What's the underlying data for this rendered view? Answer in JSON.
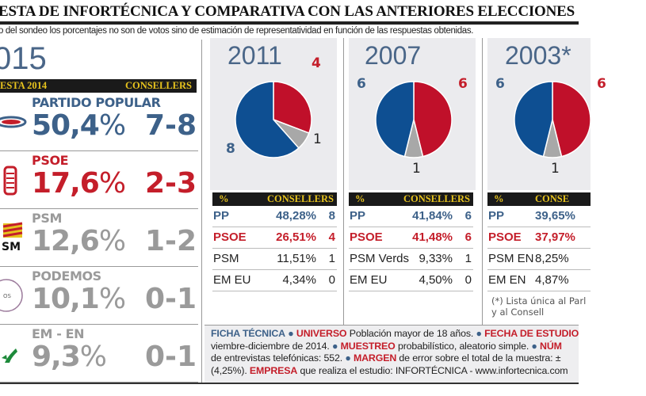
{
  "header": {
    "title": "ESTA DE INFORTÉCNICA Y COMPARATIVA CON LAS ANTERIORES ELECCIONES",
    "subtitle": "o del sondeo los porcentajes no son de votos sino de estimación de representatividad en función de las respuestas obtenidas."
  },
  "survey2015": {
    "year": "015",
    "bar_left": "ESTA 2014",
    "bar_right": "CONSELLERS",
    "parties": [
      {
        "name": "PARTIDO POPULAR",
        "pct": "50,4",
        "seats": "7-8",
        "color": "#3d6189",
        "logo": "pp-logo-icon"
      },
      {
        "name": "PSOE",
        "pct": "17,6",
        "seats": "2-3",
        "color": "#c41e2a",
        "logo": "psoe-logo-icon"
      },
      {
        "name": "PSM",
        "pct": "12,6",
        "seats": "1-2",
        "color": "#9a9a9a",
        "logo": "psm-logo-icon"
      },
      {
        "name": "PODEMOS",
        "pct": "10,1",
        "seats": "0-1",
        "color": "#9a9a9a",
        "logo": "podemos-logo-icon"
      },
      {
        "name": "EM - EN",
        "pct": "9,3",
        "seats": "0-1",
        "color": "#9a9a9a",
        "logo": "em-logo-icon"
      }
    ],
    "pct_sign": "%"
  },
  "chart_data": [
    {
      "type": "pie",
      "title": "2011",
      "labels": [
        "PSOE",
        "PSM",
        "PP"
      ],
      "values": [
        4,
        1,
        8
      ],
      "colors": [
        "#c0102a",
        "#a8a8a8",
        "#0e4f92"
      ]
    },
    {
      "type": "pie",
      "title": "2007",
      "labels": [
        "PSOE",
        "PSM Verds",
        "PP"
      ],
      "values": [
        6,
        1,
        6
      ],
      "colors": [
        "#c0102a",
        "#a8a8a8",
        "#0e4f92"
      ]
    },
    {
      "type": "pie",
      "title": "2003*",
      "labels": [
        "PSOE",
        "PSM EN",
        "PP"
      ],
      "values": [
        6,
        1,
        6
      ],
      "colors": [
        "#c0102a",
        "#a8a8a8",
        "#0e4f92"
      ]
    }
  ],
  "tables": [
    {
      "h_pct": "%",
      "h_seats": "CONSELLERS",
      "rows": [
        {
          "party": "PP",
          "pct": "48,28%",
          "seats": "8",
          "cls": "blue b"
        },
        {
          "party": "PSOE",
          "pct": "26,51%",
          "seats": "4",
          "cls": "red b"
        },
        {
          "party": "PSM",
          "pct": "11,51%",
          "seats": "1",
          "cls": ""
        },
        {
          "party": "EM EU",
          "pct": "4,34%",
          "seats": "0",
          "cls": ""
        }
      ]
    },
    {
      "h_pct": "%",
      "h_seats": "CONSELLERS",
      "rows": [
        {
          "party": "PP",
          "pct": "41,84%",
          "seats": "6",
          "cls": "blue b"
        },
        {
          "party": "PSOE",
          "pct": "41,48%",
          "seats": "6",
          "cls": "red b"
        },
        {
          "party": "PSM Verds",
          "pct": "9,33%",
          "seats": "1",
          "cls": ""
        },
        {
          "party": "EM EU",
          "pct": "4,50%",
          "seats": "0",
          "cls": ""
        }
      ]
    },
    {
      "h_pct": "%",
      "h_seats": "CONSE",
      "rows": [
        {
          "party": "PP",
          "pct": "39,65%",
          "seats": "",
          "cls": "blue b"
        },
        {
          "party": "PSOE",
          "pct": "37,97%",
          "seats": "",
          "cls": "red b"
        },
        {
          "party": "PSM EN",
          "pct": "8,25%",
          "seats": "",
          "cls": ""
        },
        {
          "party": "EM EN",
          "pct": "4,87%",
          "seats": "",
          "cls": ""
        }
      ]
    }
  ],
  "note": {
    "line1": "(*) Lista única al Parl",
    "line2": "y al Consell"
  },
  "ficha": {
    "title": "FICHA TÉCNICA",
    "universo_k": "UNIVERSO",
    "universo": " Población mayor de 18 años. ",
    "fecha_k": "FECHA DE ESTUDIO",
    "line2a": "viembre-diciembre de 2014. ",
    "muestreo_k": "MUESTREO",
    "muestreo": " probabilístico, aleatorio simple. ",
    "num_k": "NÚM",
    "line3a": "de entrevistas telefónicas: 552. ",
    "margen_k": "MARGEN",
    "margen": " de error sobre el total de la muestra: ±",
    "line4a": "(4,25%). ",
    "empresa_k": "EMPRESA",
    "empresa": " que realiza el estudio: INFORTÉCNICA  - www.infortecnica.com",
    "bullet": "●"
  }
}
